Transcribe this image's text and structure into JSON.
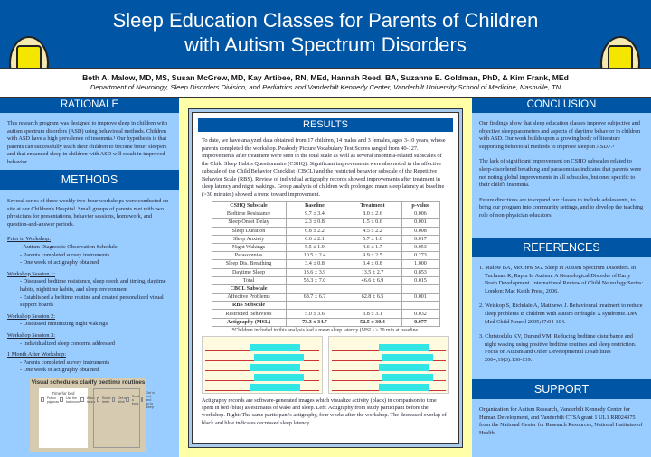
{
  "title": {
    "line1": "Sleep Education Classes for Parents of Children",
    "line2": "with Autism Spectrum Disorders"
  },
  "authors": "Beth A. Malow, MD, MS, Susan McGrew, MD, Kay Artibee, RN, MEd, Hannah Reed, BA, Suzanne E. Goldman, PhD, & Kim Frank, MEd",
  "affiliation": "Department of  Neurology, Sleep Disorders Division, and Pediatrics and Vanderbilt Kennedy Center, Vanderbilt University School of Medicine, Nashville, TN",
  "seal_text": "VANDERBILT UNIVERSITY",
  "colors": {
    "header_blue": "#0055a5",
    "column_blue": "#99ccff",
    "results_yellow": "#ffffa8",
    "actigraphy_cyan": "#33e6e6"
  },
  "rationale": {
    "heading": "RATIONALE",
    "text": "This research program was designed to improve sleep in children with autism spectrum disorders (ASD) using behavioral methods. Children with ASD have a high prevalence of insomnia.¹ Our hypothesis is that parents can successfully teach their children to become better sleepers and that enhanced sleep in children with ASD will result in improved behavior."
  },
  "methods": {
    "heading": "METHODS",
    "intro": "Several series of  three weekly two-hour workshops were conducted on-site at our Children's Hospital. Small groups of parents met with two physicians for presentations, behavior sessions, homework, and question-and-answer periods.",
    "sections": [
      {
        "title": "Prior to Workshop:",
        "items": [
          "- Autism Diagnostic Observation Schedule",
          "- Parents completed survey instruments",
          "- One week of  actigraphy obtained"
        ]
      },
      {
        "title": "Workshop Session 1:",
        "items": [
          "- Discussed bedtime resistance,  sleep needs and timing, daytime habits, nighttime habits, and sleep environment",
          "- Established a bedtime routine and created personalized visual support boards"
        ]
      },
      {
        "title": "Workshop Session 2:",
        "items": [
          "- Discussed minimizing night  wakings"
        ]
      },
      {
        "title": "Workshop Session 3:",
        "items": [
          "- Individualized sleep concerns addressed"
        ]
      },
      {
        "title": "1 Month After Workshop:",
        "items": [
          "- Parents completed survey instruments",
          "- One week of  actigraphy obtained"
        ]
      }
    ],
    "figure": {
      "title": "Visual schedules clarify bedtime routines",
      "list_title": "Time for bed",
      "steps": [
        "Put on pajamas",
        "Use the bathroom",
        "Wash hands",
        "Brush teeth",
        "Get a drink",
        "Read a book",
        "Get in bed and go to sleep"
      ]
    }
  },
  "results": {
    "heading": "RESULTS",
    "text": "To date, we have analyzed data obtained from 17 children, 14 males and 3 females, ages 3-10 years, whose parents completed the workshop. Peabody Picture Vocabulary Test Scores ranged from 40-127. Improvements after treatment were seen in the total scale as well as several insomnia-related subscales of  the Child Sleep Habits Questionnaire (CSHQ). Significant improvements were also noted in the affective subscale of  the Child Behavior Checklist (CBCL) and the restricted behavior subscale of  the Repetitive Behavior Scale (RBS). Review of  individual actigraphy records showed improvements after treatment in sleep latency and night wakings. Group analysis of children with prolonged mean sleep latency at baseline (>30 minutes) showed a trend toward improvement.",
    "table": {
      "headers": [
        "CSHQ Subscale",
        "Baseline",
        "Treatment",
        "p-value"
      ],
      "rows": [
        [
          "Bedtime Resistance",
          "9.7 ± 3.4",
          "8.0 ± 2.6",
          "0.006"
        ],
        [
          "Sleep Onset Delay",
          "2.3 ± 0.8",
          "1.5 ± 0.6",
          "0.001"
        ],
        [
          "Sleep Duration",
          "6.8 ± 2.2",
          "4.5 ± 2.2",
          "0.008"
        ],
        [
          "Sleep Anxiety",
          "6.6 ± 2.1",
          "5.7 ± 1.6",
          "0.017"
        ],
        [
          "Night Wakings",
          "5.5 ± 1.9",
          "4.6 ± 1.7",
          "0.053"
        ],
        [
          "Parasomnias",
          "10.5 ± 2.4",
          "9.9 ± 2.5",
          "0.273"
        ],
        [
          "Sleep Dis. Breathing",
          "3.4 ± 0.8",
          "3.4 ± 0.8",
          "1.000"
        ],
        [
          "Daytime Sleep",
          "13.6 ± 3.9",
          "13.5 ± 2.7",
          "0.853"
        ],
        [
          "Total",
          "53.3 ± 7.0",
          "46.6 ± 6.9",
          "0.015"
        ],
        [
          "CBCL Subscale",
          "",
          "",
          ""
        ],
        [
          "Affective Problems",
          "68.7 ± 6.7",
          "62.8 ±  6.5",
          "0.001"
        ],
        [
          "RBS Subscale",
          "",
          "",
          ""
        ],
        [
          "Restricted Behaviors",
          "5.0 ± 3.6",
          "3.8 ± 3.1",
          "0.032"
        ],
        [
          "Actigraphy (MSL)",
          "73.3 ± 34.7",
          "52.5 ± 30.4",
          "0.077"
        ]
      ]
    },
    "footnote": "*Children included in this analysis had a mean sleep latency (MSL) > 30 min at baseline.",
    "caption": "Actigraphy records are software-generated images which visualize activity (black) in comparison to time spent in bed (blue) as estimates of wake and sleep.  Left: Actigraphy from study participant before the workshop.  Right: The same participant's actigraphy, four weeks after the workshop.  The decreased overlap of  black and blue indicates decreased sleep latency."
  },
  "conclusion": {
    "heading": "CONCLUSION",
    "paragraphs": [
      "Our findings show that sleep education classes improve subjective and objective sleep parameters and aspects of daytime behavior in children with ASD. Our work builds upon a growing body of  literature supporting behavioral methods to improve sleep in ASD.²˒³",
      "The lack of significant improvement on CSHQ subscales related to sleep-disordered breathing and parasomnias indicates that parents were not noting global improvements in all subscales, but ones specific to their child's insomnia.",
      "Future directions are to expand our classes to include adolescents, to bring our program into community settings, and to develop the teaching role of  non-physician educators."
    ]
  },
  "references": {
    "heading": "REFERENCES",
    "items": [
      "1. Malow BA, McGrew SG. Sleep in Autism Spectrum Disorders. In Tuchman R, Rapin In Autism: A Neurological Disorder of  Early Brain Development. International Review of  Child Neurology Series: London: Mac Keith Press, 2006.",
      "2. Weiskop S, Richdale A, Matthews J. Behavioural treatment to reduce sleep problems in children with autism or fragile X syndrome. Dev Med Child Neurol 2005;47:94-104.",
      "3. Christodulu KV, Durand VM. Reducing bedtime disturbance and night waking using positive bedtime routines and sleep restriction. Focus on Autism and Other Developmental Disabilities 2004;19(3):130-139."
    ]
  },
  "support": {
    "heading": "SUPPORT",
    "text": "Organization for Autism Research, Vanderbilt Kennedy Center  for Human Development, and  Vanderbilt CTSA grant 1 UL1 RR024975 from the National Center for Research Resources, National Institutes of  Health."
  }
}
